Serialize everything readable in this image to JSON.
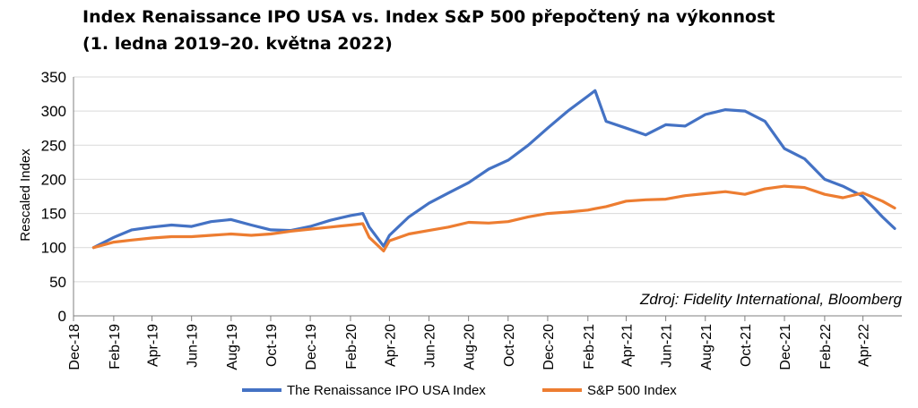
{
  "chart_data": {
    "type": "line",
    "title": "Index Renaissance IPO USA vs. Index S&P 500 přepočtený na výkonnost",
    "subtitle": "(1. ledna 2019–20. května 2022)",
    "xlabel": "",
    "ylabel": "Rescaled Index",
    "ylim": [
      0,
      350
    ],
    "yticks": [
      0,
      50,
      100,
      150,
      200,
      250,
      300,
      350
    ],
    "xticks": [
      "Dec-18",
      "Feb-19",
      "Apr-19",
      "Jun-19",
      "Aug-19",
      "Oct-19",
      "Dec-19",
      "Feb-20",
      "Apr-20",
      "Jun-20",
      "Aug-20",
      "Oct-20",
      "Dec-20",
      "Feb-21",
      "Apr-21",
      "Jun-21",
      "Aug-21",
      "Oct-21",
      "Dec-21",
      "Feb-22",
      "Apr-22"
    ],
    "grid": true,
    "legend": "bottom",
    "annotation": "Zdroj: Fidelity International, Bloomberg",
    "x": [
      "2019-01-01",
      "2019-02-01",
      "2019-03-01",
      "2019-04-01",
      "2019-05-01",
      "2019-06-01",
      "2019-07-01",
      "2019-08-01",
      "2019-09-01",
      "2019-10-01",
      "2019-11-01",
      "2019-12-01",
      "2020-01-01",
      "2020-02-01",
      "2020-02-20",
      "2020-03-01",
      "2020-03-23",
      "2020-04-01",
      "2020-05-01",
      "2020-06-01",
      "2020-07-01",
      "2020-08-01",
      "2020-09-01",
      "2020-10-01",
      "2020-11-01",
      "2020-12-01",
      "2021-01-01",
      "2021-02-01",
      "2021-02-12",
      "2021-03-01",
      "2021-04-01",
      "2021-05-01",
      "2021-06-01",
      "2021-07-01",
      "2021-08-01",
      "2021-09-01",
      "2021-10-01",
      "2021-11-01",
      "2021-12-01",
      "2022-01-01",
      "2022-02-01",
      "2022-03-01",
      "2022-04-01",
      "2022-05-01",
      "2022-05-20"
    ],
    "series": [
      {
        "name": "The Renaissance IPO USA Index",
        "color": "#4472C4",
        "values": [
          100,
          115,
          126,
          130,
          133,
          131,
          138,
          141,
          133,
          126,
          125,
          131,
          140,
          147,
          150,
          130,
          102,
          118,
          145,
          165,
          180,
          195,
          215,
          228,
          250,
          275,
          300,
          322,
          330,
          285,
          275,
          265,
          280,
          278,
          295,
          302,
          300,
          285,
          245,
          230,
          200,
          190,
          175,
          145,
          128
        ]
      },
      {
        "name": "S&P 500 Index",
        "color": "#ED7D31",
        "values": [
          100,
          108,
          111,
          114,
          116,
          116,
          118,
          120,
          118,
          120,
          124,
          127,
          130,
          133,
          135,
          115,
          95,
          110,
          120,
          125,
          130,
          137,
          136,
          138,
          145,
          150,
          152,
          155,
          157,
          160,
          168,
          170,
          171,
          176,
          179,
          182,
          178,
          186,
          190,
          188,
          178,
          173,
          180,
          168,
          158
        ]
      }
    ]
  }
}
